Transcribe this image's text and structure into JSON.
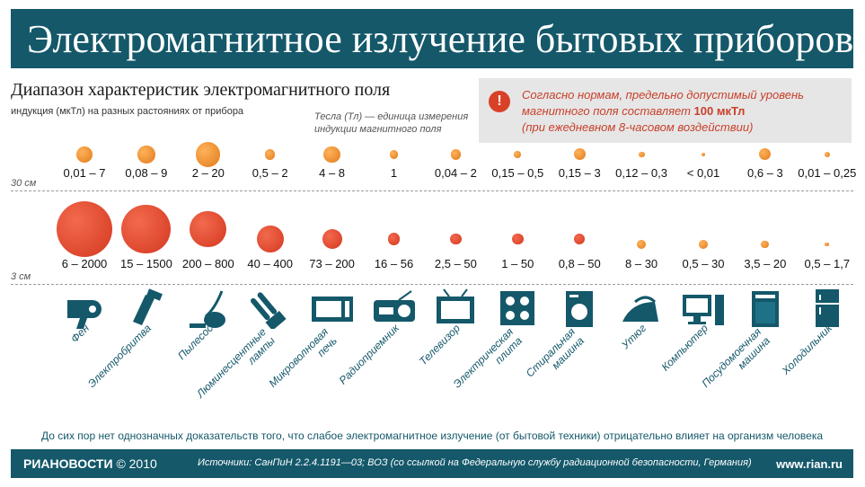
{
  "header": {
    "title": "Электромагнитное излучение бытовых приборов",
    "subtitle": "Диапазон характеристик электромагнитного поля",
    "subnote": "индукция (мкТл) на разных растояниях от прибора",
    "tesla_note": "Тесла (Тл) — единица измерения индукции магнитного поля"
  },
  "norm": {
    "text_before": "Согласно нормам, предельно допустимый уровень магнитного поля составляет ",
    "value": "100 мкТл",
    "text_after": "(при ежедневном 8-часовом воздействии)",
    "icon": "exclamation-icon",
    "color": "#c8402a"
  },
  "chart_data": {
    "type": "bubble",
    "unit": "мкТл",
    "distances": [
      "30 см",
      "3 см"
    ],
    "devices": [
      {
        "name": "Фен",
        "icon": "hair-dryer-icon",
        "far": "0,01 – 7",
        "far_max": 7,
        "near": "6 – 2000",
        "near_max": 2000
      },
      {
        "name": "Электробритва",
        "icon": "shaver-icon",
        "far": "0,08 – 9",
        "far_max": 9,
        "near": "15 – 1500",
        "near_max": 1500
      },
      {
        "name": "Пылесос",
        "icon": "vacuum-cleaner-icon",
        "far": "2 – 20",
        "far_max": 20,
        "near": "200 – 800",
        "near_max": 800
      },
      {
        "name": "Люминесцентные лампы",
        "icon": "fluorescent-lamp-icon",
        "far": "0,5 – 2",
        "far_max": 2,
        "near": "40 – 400",
        "near_max": 400
      },
      {
        "name": "Микроволновая печь",
        "icon": "microwave-icon",
        "far": "4 – 8",
        "far_max": 8,
        "near": "73 – 200",
        "near_max": 200
      },
      {
        "name": "Радиоприемник",
        "icon": "radio-icon",
        "far": "1",
        "far_max": 1,
        "near": "16 – 56",
        "near_max": 56
      },
      {
        "name": "Телевизор",
        "icon": "tv-icon",
        "far": "0,04 – 2",
        "far_max": 2,
        "near": "2,5 – 50",
        "near_max": 50
      },
      {
        "name": "Электрическая плита",
        "icon": "electric-stove-icon",
        "far": "0,15 – 0,5",
        "far_max": 0.5,
        "near": "1 – 50",
        "near_max": 50
      },
      {
        "name": "Стиральная машина",
        "icon": "washing-machine-icon",
        "far": "0,15 – 3",
        "far_max": 3,
        "near": "0,8 – 50",
        "near_max": 50
      },
      {
        "name": "Утюг",
        "icon": "iron-icon",
        "far": "0,12 – 0,3",
        "far_max": 0.3,
        "near": "8 – 30",
        "near_max": 30
      },
      {
        "name": "Компьютер",
        "icon": "computer-icon",
        "far": "< 0,01",
        "far_max": 0.01,
        "near": "0,5 – 30",
        "near_max": 30
      },
      {
        "name": "Посудомоечная машина",
        "icon": "dishwasher-icon",
        "far": "0,6 – 3",
        "far_max": 3,
        "near": "3,5 – 20",
        "near_max": 20
      },
      {
        "name": "Холодильник",
        "icon": "refrigerator-icon",
        "far": "0,01 – 0,25",
        "far_max": 0.25,
        "near": "0,5 – 1,7",
        "near_max": 1.7
      }
    ]
  },
  "disclaimer": "До сих пор нет однозначных доказательств того, что слабое электромагнитное излучение (от бытовой техники) отрицательно влияет на организм человека",
  "footer": {
    "brand": "РИАНОВОСТИ",
    "year": "© 2010",
    "sources": "Источники: СанПиН 2.2.4.1191—03; ВОЗ (со ссылкой на Федеральную службу радиационной безопасности, Германия)",
    "site": "www.rian.ru"
  },
  "colors": {
    "brand": "#14586a",
    "bubble_large": "#d9472a",
    "bubble_small": "#e8892a"
  }
}
